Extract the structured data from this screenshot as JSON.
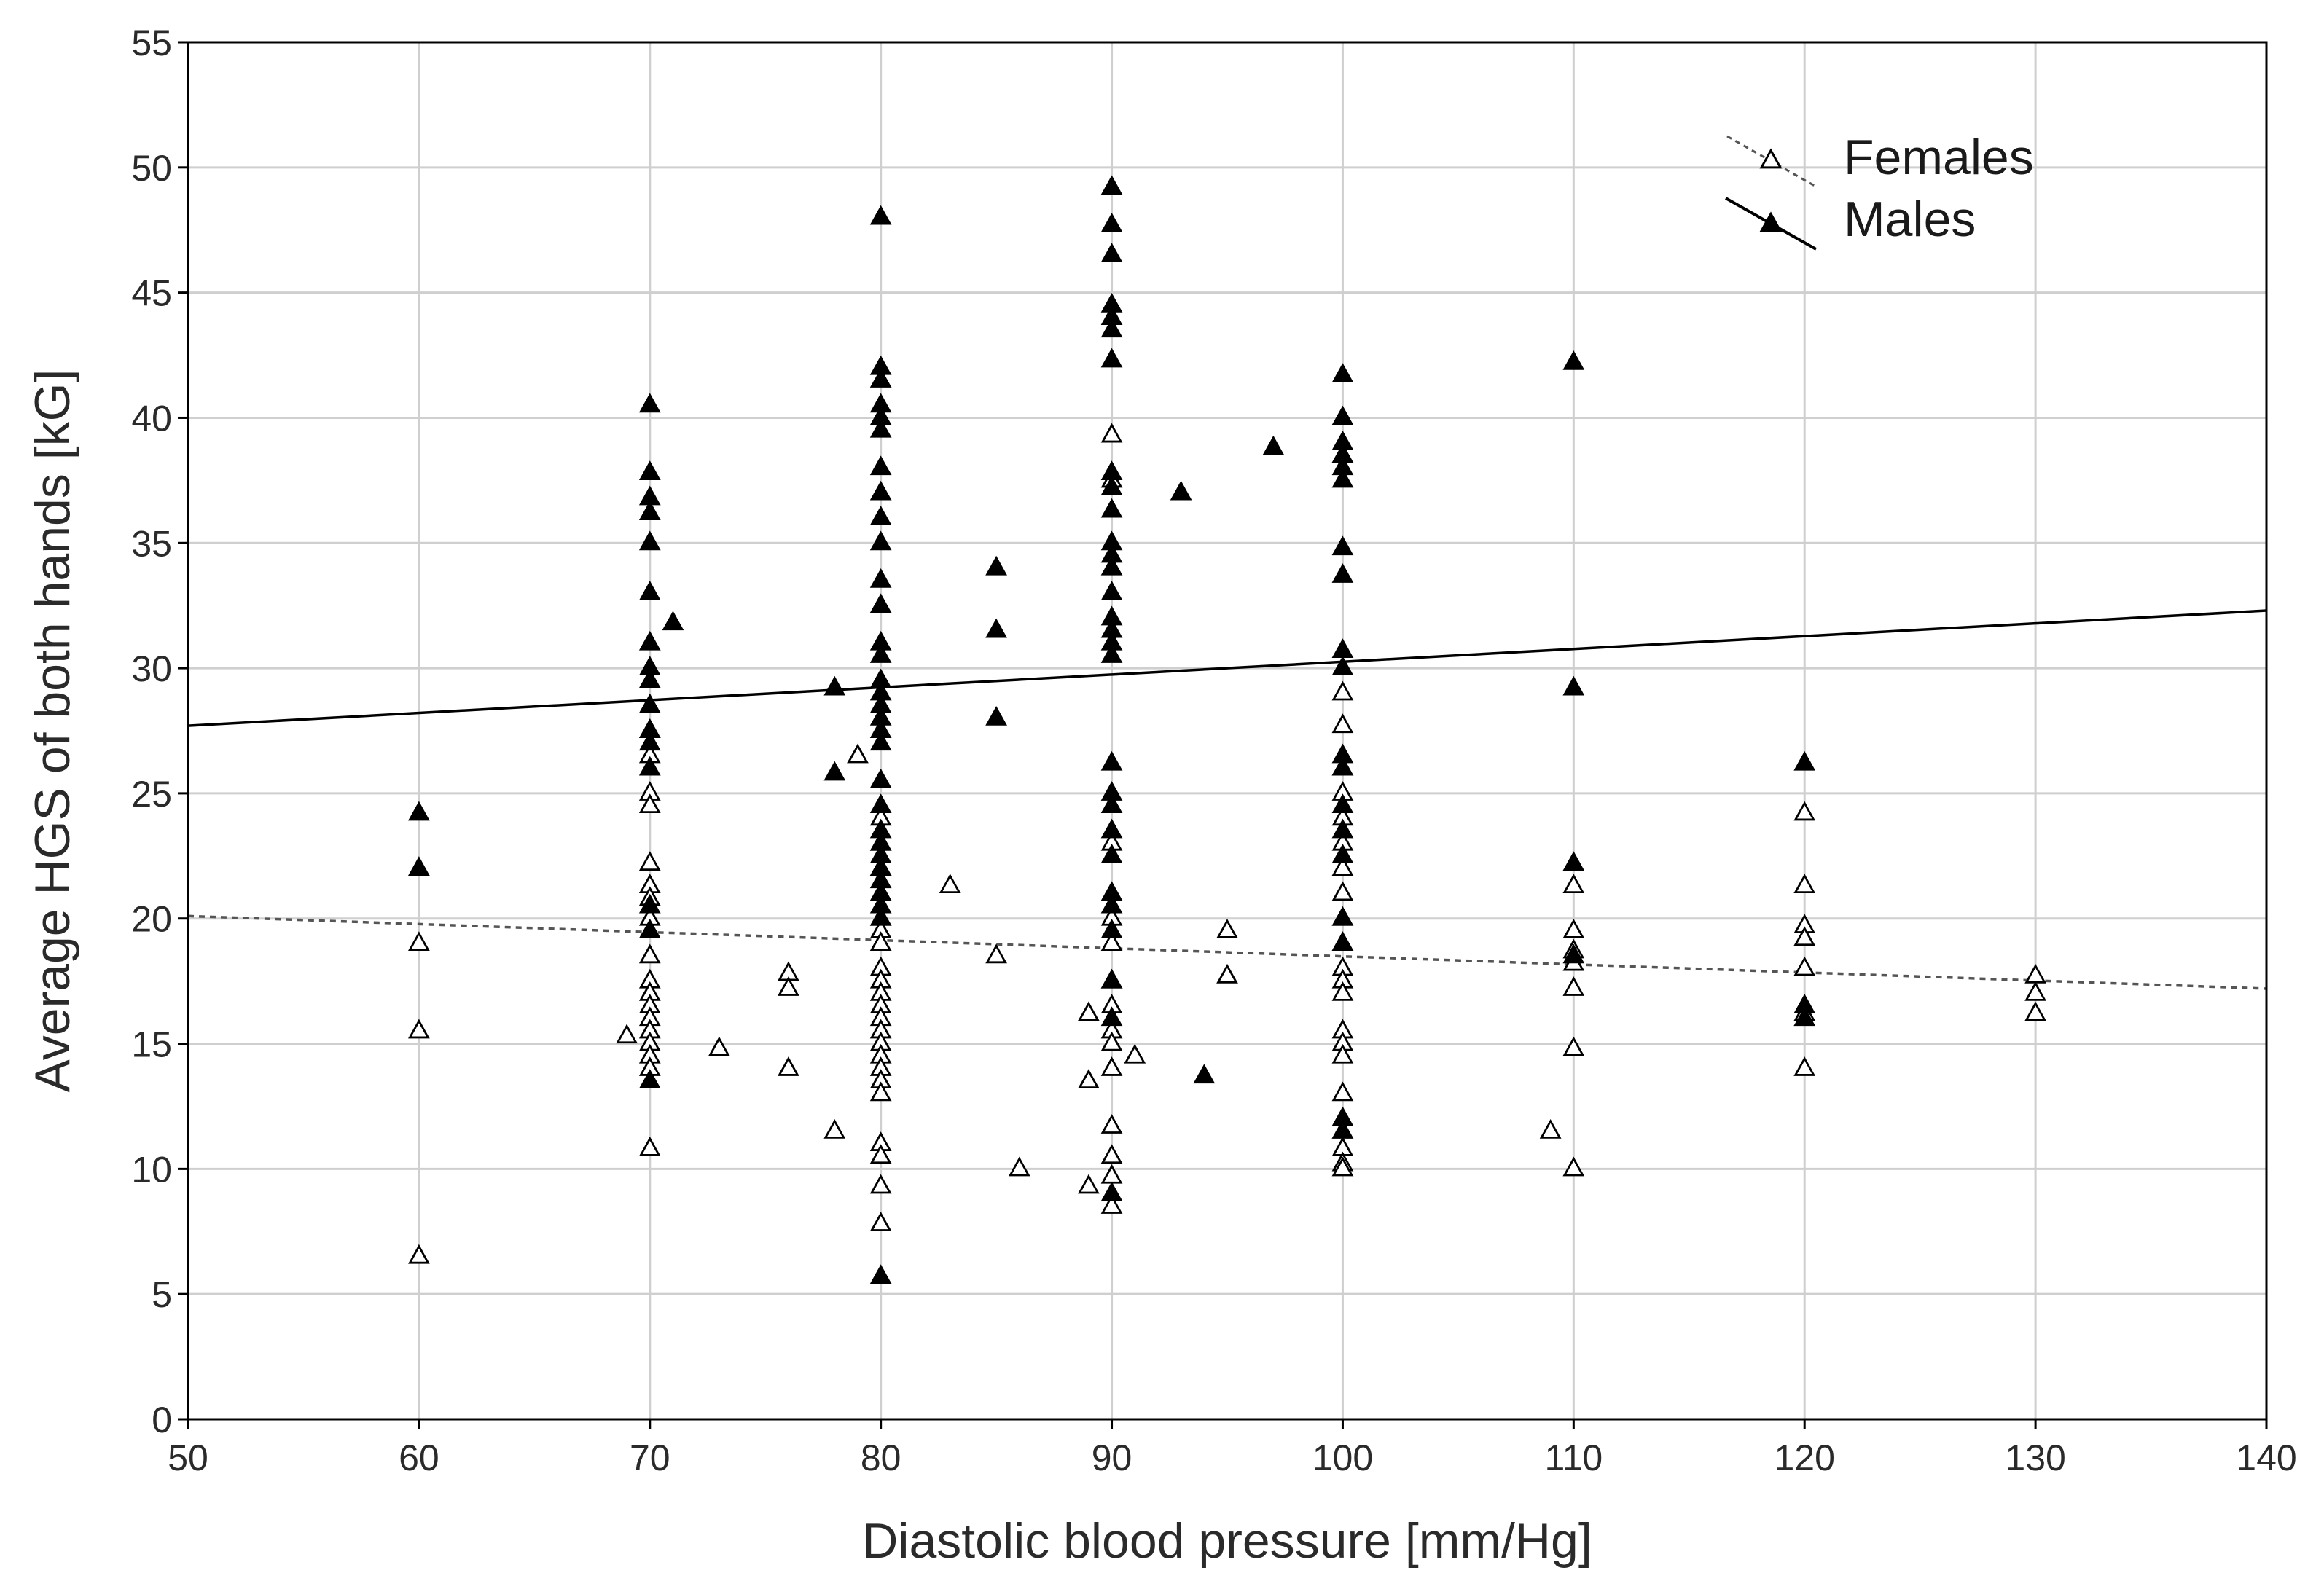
{
  "chart_data": {
    "type": "scatter",
    "title": "",
    "xlabel": "Diastolic blood pressure [mm/Hg]",
    "ylabel": "Average HGS of both hands [kG]",
    "xlim": [
      50,
      140
    ],
    "ylim": [
      0,
      55
    ],
    "x_ticks": [
      50,
      60,
      70,
      80,
      90,
      100,
      110,
      120,
      130,
      140
    ],
    "y_ticks": [
      0,
      5,
      10,
      15,
      20,
      25,
      30,
      35,
      40,
      45,
      50,
      55
    ],
    "grid": true,
    "legend_position": "top-right",
    "series": [
      {
        "name": "Females",
        "marker": "open-triangle",
        "line_style": "dashed",
        "fit": {
          "x": [
            50,
            140
          ],
          "y": [
            20.1,
            17.2
          ]
        },
        "points": [
          [
            60,
            19.0
          ],
          [
            60,
            15.5
          ],
          [
            60,
            6.5
          ],
          [
            69,
            15.3
          ],
          [
            70,
            27.5
          ],
          [
            70,
            26.5
          ],
          [
            70,
            25.0
          ],
          [
            70,
            24.5
          ],
          [
            70,
            22.2
          ],
          [
            70,
            21.3
          ],
          [
            70,
            20.8
          ],
          [
            70,
            20.0
          ],
          [
            70,
            19.5
          ],
          [
            70,
            18.5
          ],
          [
            70,
            17.5
          ],
          [
            70,
            17.0
          ],
          [
            70,
            16.5
          ],
          [
            70,
            16.0
          ],
          [
            70,
            15.5
          ],
          [
            70,
            15.0
          ],
          [
            70,
            14.5
          ],
          [
            70,
            14.0
          ],
          [
            70,
            10.8
          ],
          [
            73,
            14.8
          ],
          [
            76,
            17.8
          ],
          [
            76,
            17.2
          ],
          [
            76,
            14.0
          ],
          [
            78,
            11.5
          ],
          [
            79,
            26.5
          ],
          [
            80,
            24.0
          ],
          [
            80,
            23.0
          ],
          [
            80,
            22.0
          ],
          [
            80,
            21.0
          ],
          [
            80,
            20.0
          ],
          [
            80,
            19.5
          ],
          [
            80,
            19.0
          ],
          [
            80,
            18.0
          ],
          [
            80,
            17.5
          ],
          [
            80,
            17.0
          ],
          [
            80,
            16.5
          ],
          [
            80,
            16.0
          ],
          [
            80,
            15.5
          ],
          [
            80,
            15.0
          ],
          [
            80,
            14.5
          ],
          [
            80,
            14.0
          ],
          [
            80,
            13.5
          ],
          [
            80,
            13.0
          ],
          [
            80,
            11.0
          ],
          [
            80,
            10.5
          ],
          [
            80,
            9.3
          ],
          [
            80,
            7.8
          ],
          [
            83,
            21.3
          ],
          [
            85,
            18.5
          ],
          [
            86,
            10.0
          ],
          [
            89,
            16.2
          ],
          [
            89,
            13.5
          ],
          [
            89,
            9.3
          ],
          [
            90,
            39.3
          ],
          [
            90,
            37.5
          ],
          [
            90,
            23.0
          ],
          [
            90,
            21.0
          ],
          [
            90,
            20.0
          ],
          [
            90,
            19.0
          ],
          [
            90,
            17.5
          ],
          [
            90,
            16.5
          ],
          [
            90,
            15.5
          ],
          [
            90,
            15.0
          ],
          [
            90,
            14.0
          ],
          [
            90,
            11.7
          ],
          [
            90,
            10.5
          ],
          [
            90,
            9.7
          ],
          [
            90,
            8.5
          ],
          [
            91,
            14.5
          ],
          [
            95,
            19.5
          ],
          [
            95,
            17.7
          ],
          [
            100,
            29.0
          ],
          [
            100,
            27.7
          ],
          [
            100,
            26.0
          ],
          [
            100,
            25.0
          ],
          [
            100,
            24.0
          ],
          [
            100,
            23.0
          ],
          [
            100,
            22.0
          ],
          [
            100,
            21.0
          ],
          [
            100,
            20.0
          ],
          [
            100,
            19.0
          ],
          [
            100,
            18.0
          ],
          [
            100,
            17.5
          ],
          [
            100,
            17.0
          ],
          [
            100,
            15.5
          ],
          [
            100,
            15.0
          ],
          [
            100,
            14.5
          ],
          [
            100,
            13.0
          ],
          [
            100,
            12.0
          ],
          [
            100,
            11.5
          ],
          [
            100,
            10.8
          ],
          [
            100,
            10.2
          ],
          [
            100,
            10.0
          ],
          [
            109,
            11.5
          ],
          [
            110,
            21.3
          ],
          [
            110,
            19.5
          ],
          [
            110,
            18.7
          ],
          [
            110,
            18.2
          ],
          [
            110,
            17.2
          ],
          [
            110,
            14.8
          ],
          [
            110,
            10.0
          ],
          [
            120,
            24.2
          ],
          [
            120,
            21.3
          ],
          [
            120,
            19.7
          ],
          [
            120,
            19.2
          ],
          [
            120,
            18.0
          ],
          [
            120,
            16.5
          ],
          [
            120,
            16.2
          ],
          [
            120,
            14.0
          ],
          [
            130,
            17.7
          ],
          [
            130,
            17.0
          ],
          [
            130,
            16.2
          ]
        ]
      },
      {
        "name": "Males",
        "marker": "filled-triangle",
        "line_style": "solid",
        "fit": {
          "x": [
            50,
            140
          ],
          "y": [
            27.7,
            32.3
          ]
        },
        "points": [
          [
            60,
            24.2
          ],
          [
            60,
            22.0
          ],
          [
            70,
            40.5
          ],
          [
            70,
            37.8
          ],
          [
            70,
            36.8
          ],
          [
            70,
            36.2
          ],
          [
            70,
            35.0
          ],
          [
            70,
            33.0
          ],
          [
            70,
            31.0
          ],
          [
            70,
            30.0
          ],
          [
            70,
            29.5
          ],
          [
            70,
            28.5
          ],
          [
            70,
            27.5
          ],
          [
            70,
            27.0
          ],
          [
            70,
            26.0
          ],
          [
            70,
            20.5
          ],
          [
            70,
            19.5
          ],
          [
            70,
            13.5
          ],
          [
            71,
            31.8
          ],
          [
            78,
            29.2
          ],
          [
            78,
            25.8
          ],
          [
            80,
            48.0
          ],
          [
            80,
            42.0
          ],
          [
            80,
            41.5
          ],
          [
            80,
            40.5
          ],
          [
            80,
            40.0
          ],
          [
            80,
            39.5
          ],
          [
            80,
            38.0
          ],
          [
            80,
            37.0
          ],
          [
            80,
            36.0
          ],
          [
            80,
            35.0
          ],
          [
            80,
            33.5
          ],
          [
            80,
            32.5
          ],
          [
            80,
            31.0
          ],
          [
            80,
            30.5
          ],
          [
            80,
            29.5
          ],
          [
            80,
            29.0
          ],
          [
            80,
            28.5
          ],
          [
            80,
            28.0
          ],
          [
            80,
            27.5
          ],
          [
            80,
            27.0
          ],
          [
            80,
            25.5
          ],
          [
            80,
            24.5
          ],
          [
            80,
            23.5
          ],
          [
            80,
            23.0
          ],
          [
            80,
            22.5
          ],
          [
            80,
            22.0
          ],
          [
            80,
            21.5
          ],
          [
            80,
            21.0
          ],
          [
            80,
            20.5
          ],
          [
            80,
            20.0
          ],
          [
            80,
            5.7
          ],
          [
            85,
            34.0
          ],
          [
            85,
            31.5
          ],
          [
            85,
            28.0
          ],
          [
            90,
            49.2
          ],
          [
            90,
            47.7
          ],
          [
            90,
            46.5
          ],
          [
            90,
            44.5
          ],
          [
            90,
            44.0
          ],
          [
            90,
            43.5
          ],
          [
            90,
            42.3
          ],
          [
            90,
            37.8
          ],
          [
            90,
            37.2
          ],
          [
            90,
            36.3
          ],
          [
            90,
            35.0
          ],
          [
            90,
            34.5
          ],
          [
            90,
            34.0
          ],
          [
            90,
            33.0
          ],
          [
            90,
            32.0
          ],
          [
            90,
            31.5
          ],
          [
            90,
            31.0
          ],
          [
            90,
            30.5
          ],
          [
            90,
            26.2
          ],
          [
            90,
            25.0
          ],
          [
            90,
            24.5
          ],
          [
            90,
            23.5
          ],
          [
            90,
            22.5
          ],
          [
            90,
            21.0
          ],
          [
            90,
            20.5
          ],
          [
            90,
            19.5
          ],
          [
            90,
            17.5
          ],
          [
            90,
            16.0
          ],
          [
            90,
            9.0
          ],
          [
            93,
            37.0
          ],
          [
            94,
            13.7
          ],
          [
            97,
            38.8
          ],
          [
            100,
            41.7
          ],
          [
            100,
            40.0
          ],
          [
            100,
            39.0
          ],
          [
            100,
            38.5
          ],
          [
            100,
            38.0
          ],
          [
            100,
            37.5
          ],
          [
            100,
            34.8
          ],
          [
            100,
            33.7
          ],
          [
            100,
            30.7
          ],
          [
            100,
            30.0
          ],
          [
            100,
            26.5
          ],
          [
            100,
            26.0
          ],
          [
            100,
            24.5
          ],
          [
            100,
            23.5
          ],
          [
            100,
            22.5
          ],
          [
            100,
            20.0
          ],
          [
            100,
            19.0
          ],
          [
            100,
            12.0
          ],
          [
            100,
            11.5
          ],
          [
            110,
            42.2
          ],
          [
            110,
            29.2
          ],
          [
            110,
            22.2
          ],
          [
            110,
            18.5
          ],
          [
            120,
            26.2
          ],
          [
            120,
            16.5
          ],
          [
            120,
            16.0
          ]
        ]
      }
    ]
  }
}
